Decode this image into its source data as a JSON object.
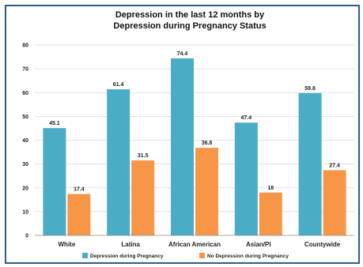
{
  "chart_data": {
    "type": "bar",
    "title_lines": [
      "Depression in the last 12 months by",
      "Depression during Pregnancy Status"
    ],
    "categories": [
      "White",
      "Latina",
      "African American",
      "Asian/PI",
      "Countywide"
    ],
    "series": [
      {
        "name": "Depression during Pregnancy",
        "color": "#4bacc6",
        "values": [
          45.1,
          61.4,
          74.4,
          47.4,
          59.8
        ]
      },
      {
        "name": "No Depression during Pregnancy",
        "color": "#f79646",
        "values": [
          17.4,
          31.5,
          36.8,
          18,
          27.4
        ]
      }
    ],
    "value_labels": [
      [
        "45.1",
        "61.4",
        "74.4",
        "47.4",
        "59.8"
      ],
      [
        "17.4",
        "31.5",
        "36.8",
        "18",
        "27.4"
      ]
    ],
    "ylim": [
      0,
      80
    ],
    "yticks": [
      0,
      10,
      20,
      30,
      40,
      50,
      60,
      70,
      80
    ],
    "grid": true,
    "legend_position": "bottom"
  }
}
